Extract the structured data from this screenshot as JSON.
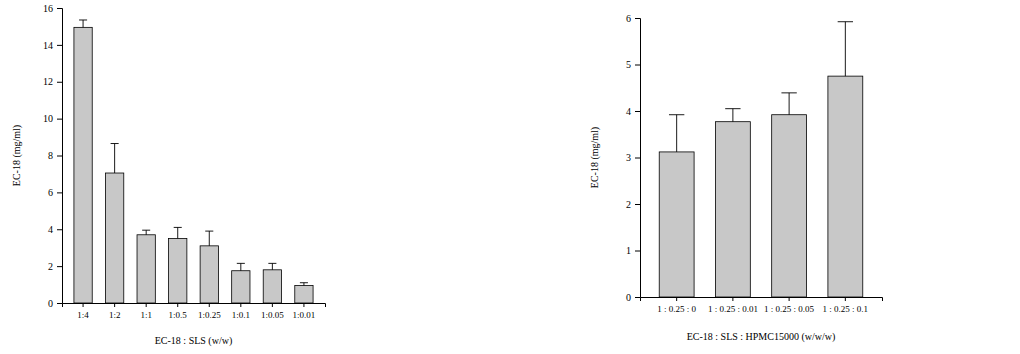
{
  "chart_data": [
    {
      "type": "bar",
      "x_label": "EC-18 : SLS (w/w)",
      "y_label": "EC-18 (mg/ml)",
      "categories": [
        "1:4",
        "1:2",
        "1:1",
        "1:0.5",
        "1:0.25",
        "1:0.1",
        "1:0.05",
        "1:0.01"
      ],
      "values": [
        14.95,
        7.05,
        3.7,
        3.5,
        3.1,
        1.75,
        1.8,
        0.95
      ],
      "errors": [
        0.4,
        1.6,
        0.25,
        0.6,
        0.8,
        0.4,
        0.35,
        0.15
      ],
      "color": "#c8c8c8",
      "ylim": [
        0,
        16
      ],
      "yticks": [
        0,
        2,
        4,
        6,
        8,
        10,
        12,
        14,
        16
      ],
      "grid": false
    },
    {
      "type": "bar",
      "x_label": "EC-18 : SLS : HPMC15000 (w/w/w)",
      "y_label": "EC-18 (mg/ml)",
      "categories": [
        "1 : 0.25 : 0",
        "1 : 0.25 : 0.01",
        "1 : 0.25 : 0.05",
        "1 : 0.25 : 0.1"
      ],
      "values": [
        3.12,
        3.77,
        3.92,
        4.75
      ],
      "errors": [
        0.8,
        0.28,
        0.47,
        1.17
      ],
      "color": "#c8c8c8",
      "ylim": [
        0,
        6
      ],
      "yticks": [
        0,
        1,
        2,
        3,
        4,
        5,
        6
      ],
      "grid": false
    }
  ]
}
